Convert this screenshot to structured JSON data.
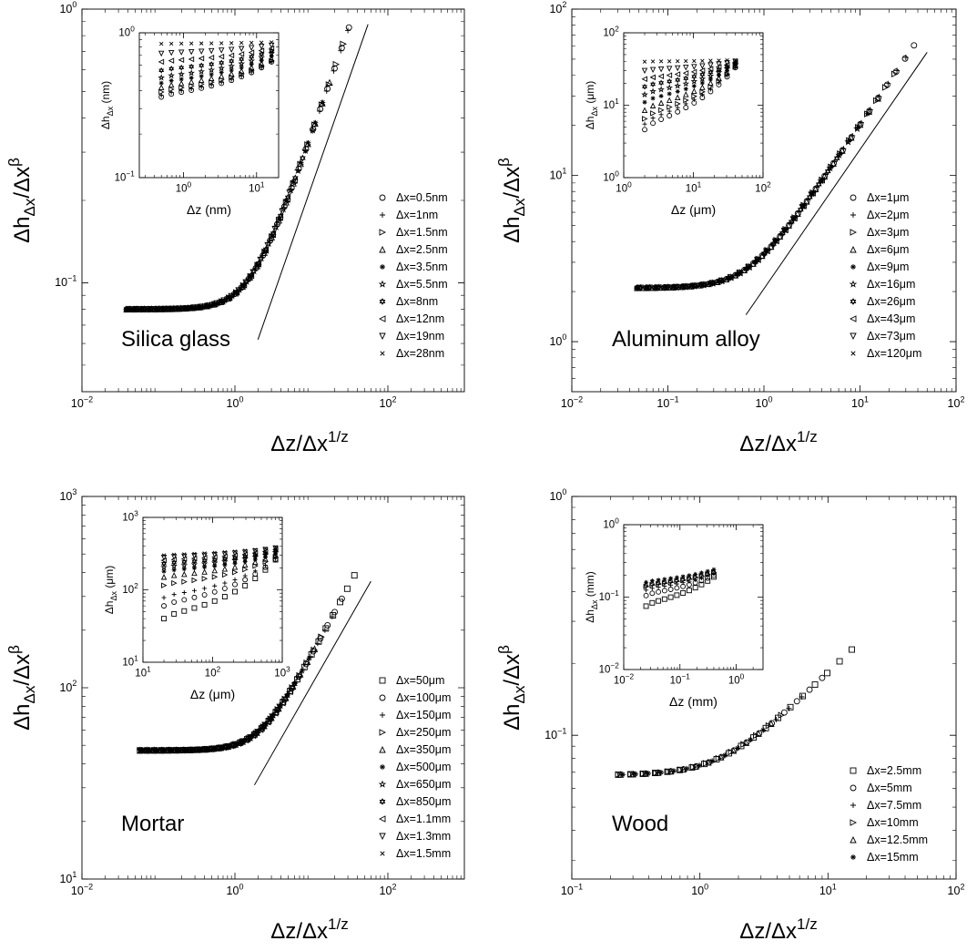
{
  "figure": {
    "panel_order": [
      "Silica glass",
      "Aluminum alloy",
      "Mortar",
      "Wood"
    ],
    "marker_color": "#000000",
    "background_color": "#ffffff"
  },
  "chart_data": [
    {
      "type": "scatter",
      "scale": "log-log",
      "panel_label": "Silica glass",
      "xlabel": {
        "base": "Δz/Δx",
        "sup": "1/z"
      },
      "ylabel": {
        "main": "Δh",
        "sub": "Δx",
        "mid": "/Δx",
        "sup": "β"
      },
      "xlim": [
        0.01,
        1000
      ],
      "ylim": [
        0.04,
        1
      ],
      "x_ticks": [
        {
          "v": 0.01,
          "mant": "10",
          "exp": "−2"
        },
        {
          "v": 1,
          "mant": "10",
          "exp": "0"
        },
        {
          "v": 100,
          "mant": "10",
          "exp": "2"
        }
      ],
      "y_ticks": [
        {
          "v": 0.1,
          "mant": "10",
          "exp": "−1"
        },
        {
          "v": 1,
          "mant": "10",
          "exp": "0"
        }
      ],
      "legend_position": "right",
      "legend": [
        {
          "label": "Δx=0.5nm",
          "marker": "circle"
        },
        {
          "label": "Δx=1nm",
          "marker": "plus"
        },
        {
          "label": "Δx=1.5nm",
          "marker": "tri-right"
        },
        {
          "label": "Δx=2.5nm",
          "marker": "tri-up"
        },
        {
          "label": "Δx=3.5nm",
          "marker": "asterisk"
        },
        {
          "label": "Δx=5.5nm",
          "marker": "star"
        },
        {
          "label": "Δx=8nm",
          "marker": "hexagram"
        },
        {
          "label": "Δx=12nm",
          "marker": "tri-left"
        },
        {
          "label": "Δx=19nm",
          "marker": "tri-down"
        },
        {
          "label": "Δx=28nm",
          "marker": "cross"
        }
      ],
      "collapse": {
        "xmin": 0.04,
        "plateau": 0.08,
        "xc": 1.6,
        "slope": 0.8,
        "xmaxs": [
          40,
          30,
          25,
          18,
          14,
          10,
          8,
          6,
          5,
          4
        ]
      },
      "fit_line": [
        [
          2,
          0.062
        ],
        [
          55,
          0.88
        ]
      ],
      "inset": {
        "xlabel": "Δz (nm)",
        "ylabel": {
          "main": "Δh",
          "sub": "Δx",
          "unit": " (nm)"
        },
        "xlim": [
          0.25,
          20
        ],
        "ylim": [
          0.1,
          1
        ],
        "x_ticks": [
          {
            "v": 1,
            "mant": "10",
            "exp": "0"
          },
          {
            "v": 10,
            "mant": "10",
            "exp": "1"
          }
        ],
        "y_ticks": [
          {
            "v": 0.1,
            "mant": "10",
            "exp": "−1"
          },
          {
            "v": 1,
            "mant": "10",
            "exp": "0"
          }
        ],
        "x_range": [
          0.5,
          16
        ],
        "start_levels": [
          0.36,
          0.37,
          0.39,
          0.42,
          0.45,
          0.49,
          0.55,
          0.63,
          0.72,
          0.84
        ],
        "end_levels": [
          0.63,
          0.63,
          0.64,
          0.66,
          0.69,
          0.72,
          0.75,
          0.78,
          0.82,
          0.86
        ],
        "knee": 5
      }
    },
    {
      "type": "scatter",
      "scale": "log-log",
      "panel_label": "Aluminum alloy",
      "xlabel": {
        "base": "Δz/Δx",
        "sup": "1/z"
      },
      "ylabel": {
        "main": "Δh",
        "sub": "Δx",
        "mid": "/Δx",
        "sup": "β"
      },
      "xlim": [
        0.01,
        100
      ],
      "ylim": [
        0.5,
        100
      ],
      "x_ticks": [
        {
          "v": 0.01,
          "mant": "10",
          "exp": "−2"
        },
        {
          "v": 0.1,
          "mant": "10",
          "exp": "−1"
        },
        {
          "v": 1,
          "mant": "10",
          "exp": "0"
        },
        {
          "v": 10,
          "mant": "10",
          "exp": "1"
        },
        {
          "v": 100,
          "mant": "10",
          "exp": "2"
        }
      ],
      "y_ticks": [
        {
          "v": 1,
          "mant": "10",
          "exp": "0"
        },
        {
          "v": 10,
          "mant": "10",
          "exp": "1"
        },
        {
          "v": 100,
          "mant": "10",
          "exp": "2"
        }
      ],
      "legend_position": "right",
      "legend": [
        {
          "label": "Δx=1μm",
          "marker": "circle"
        },
        {
          "label": "Δx=2μm",
          "marker": "plus"
        },
        {
          "label": "Δx=3μm",
          "marker": "tri-right"
        },
        {
          "label": "Δx=6μm",
          "marker": "tri-up"
        },
        {
          "label": "Δx=9μm",
          "marker": "asterisk"
        },
        {
          "label": "Δx=16μm",
          "marker": "star"
        },
        {
          "label": "Δx=26μm",
          "marker": "hexagram"
        },
        {
          "label": "Δx=43μm",
          "marker": "tri-left"
        },
        {
          "label": "Δx=73μm",
          "marker": "tri-down"
        },
        {
          "label": "Δx=120μm",
          "marker": "cross"
        }
      ],
      "collapse": {
        "xmin": 0.05,
        "plateau": 2.1,
        "xc": 0.7,
        "slope": 0.85,
        "xmaxs": [
          38,
          30,
          22,
          16,
          12,
          9,
          6,
          4,
          3,
          2
        ]
      },
      "fit_line": [
        [
          0.65,
          1.45
        ],
        [
          50,
          55
        ]
      ],
      "inset": {
        "xlabel": "Δz (μm)",
        "ylabel": {
          "main": "Δh",
          "sub": "Δx",
          "unit": " (μm)"
        },
        "xlim": [
          1,
          100
        ],
        "ylim": [
          1,
          100
        ],
        "x_ticks": [
          {
            "v": 1,
            "mant": "10",
            "exp": "0"
          },
          {
            "v": 10,
            "mant": "10",
            "exp": "1"
          },
          {
            "v": 100,
            "mant": "10",
            "exp": "2"
          }
        ],
        "y_ticks": [
          {
            "v": 1,
            "mant": "10",
            "exp": "0"
          },
          {
            "v": 10,
            "mant": "10",
            "exp": "1"
          },
          {
            "v": 100,
            "mant": "10",
            "exp": "2"
          }
        ],
        "x_range": [
          2,
          40
        ],
        "start_levels": [
          4.6,
          5.5,
          6.5,
          8.5,
          11,
          14,
          18,
          23,
          30,
          40
        ],
        "end_levels": [
          33,
          33.5,
          34,
          35,
          36,
          37,
          38,
          39,
          40,
          42
        ],
        "knee": 2.5
      }
    },
    {
      "type": "scatter",
      "scale": "log-log",
      "panel_label": "Mortar",
      "xlabel": {
        "base": "Δz/Δx",
        "sup": "1/z"
      },
      "ylabel": {
        "main": "Δh",
        "sub": "Δx",
        "mid": "/Δx",
        "sup": "β"
      },
      "xlim": [
        0.01,
        1000
      ],
      "ylim": [
        10,
        1000
      ],
      "x_ticks": [
        {
          "v": 0.01,
          "mant": "10",
          "exp": "−2"
        },
        {
          "v": 1,
          "mant": "10",
          "exp": "0"
        },
        {
          "v": 100,
          "mant": "10",
          "exp": "2"
        }
      ],
      "y_ticks": [
        {
          "v": 10,
          "mant": "10",
          "exp": "1"
        },
        {
          "v": 100,
          "mant": "10",
          "exp": "2"
        },
        {
          "v": 1000,
          "mant": "10",
          "exp": "3"
        }
      ],
      "legend_position": "right",
      "legend": [
        {
          "label": "Δx=50μm",
          "marker": "square"
        },
        {
          "label": "Δx=100μm",
          "marker": "circle"
        },
        {
          "label": "Δx=150μm",
          "marker": "plus"
        },
        {
          "label": "Δx=250μm",
          "marker": "tri-right"
        },
        {
          "label": "Δx=350μm",
          "marker": "tri-up"
        },
        {
          "label": "Δx=500μm",
          "marker": "asterisk"
        },
        {
          "label": "Δx=650μm",
          "marker": "star"
        },
        {
          "label": "Δx=850μm",
          "marker": "hexagram"
        },
        {
          "label": "Δx=1.1mm",
          "marker": "tri-left"
        },
        {
          "label": "Δx=1.3mm",
          "marker": "tri-down"
        },
        {
          "label": "Δx=1.5mm",
          "marker": "cross"
        }
      ],
      "collapse": {
        "xmin": 0.06,
        "plateau": 47,
        "xc": 2.2,
        "slope": 0.75,
        "xmaxs": [
          38,
          25,
          18,
          14,
          11,
          9,
          7,
          6,
          5,
          4,
          3.5
        ]
      },
      "fit_line": [
        [
          1.8,
          31
        ],
        [
          60,
          360
        ]
      ],
      "inset": {
        "xlabel": "Δz (μm)",
        "ylabel": {
          "main": "Δh",
          "sub": "Δx",
          "unit": " (μm)"
        },
        "xlim": [
          10,
          1000
        ],
        "ylim": [
          10,
          1000
        ],
        "x_ticks": [
          {
            "v": 10,
            "mant": "10",
            "exp": "1"
          },
          {
            "v": 100,
            "mant": "10",
            "exp": "2"
          },
          {
            "v": 1000,
            "mant": "10",
            "exp": "3"
          }
        ],
        "y_ticks": [
          {
            "v": 10,
            "mant": "10",
            "exp": "1"
          },
          {
            "v": 100,
            "mant": "10",
            "exp": "2"
          },
          {
            "v": 1000,
            "mant": "10",
            "exp": "3"
          }
        ],
        "x_range": [
          20,
          800
        ],
        "start_levels": [
          40,
          60,
          78,
          115,
          150,
          180,
          205,
          230,
          255,
          280,
          300
        ],
        "end_levels": [
          260,
          265,
          270,
          285,
          300,
          315,
          330,
          345,
          360,
          375,
          390
        ],
        "knee": 80
      }
    },
    {
      "type": "scatter",
      "scale": "log-log",
      "panel_label": "Wood",
      "xlabel": {
        "base": "Δz/Δx",
        "sup": "1/z"
      },
      "ylabel": {
        "main": "Δh",
        "sub": "Δx",
        "mid": "/Δx",
        "sup": "β"
      },
      "xlim": [
        0.1,
        100
      ],
      "ylim": [
        0.025,
        1
      ],
      "x_ticks": [
        {
          "v": 0.1,
          "mant": "10",
          "exp": "−1"
        },
        {
          "v": 1,
          "mant": "10",
          "exp": "0"
        },
        {
          "v": 10,
          "mant": "10",
          "exp": "1"
        },
        {
          "v": 100,
          "mant": "10",
          "exp": "2"
        }
      ],
      "y_ticks": [
        {
          "v": 0.1,
          "mant": "10",
          "exp": "−1"
        },
        {
          "v": 1,
          "mant": "10",
          "exp": "0"
        }
      ],
      "legend_position": "right",
      "legend": [
        {
          "label": "Δx=2.5mm",
          "marker": "square"
        },
        {
          "label": "Δx=5mm",
          "marker": "circle"
        },
        {
          "label": "Δx=7.5mm",
          "marker": "plus"
        },
        {
          "label": "Δx=10mm",
          "marker": "tri-right"
        },
        {
          "label": "Δx=12.5mm",
          "marker": "tri-up"
        },
        {
          "label": "Δx=15mm",
          "marker": "asterisk"
        }
      ],
      "collapse": {
        "xmin": 0.24,
        "plateau": 0.068,
        "xc": 1.5,
        "slope": 0.52,
        "xmaxs": [
          16,
          9,
          6,
          4.5,
          3.6,
          3
        ]
      },
      "fit_line": null,
      "inset": {
        "xlabel": "Δz (mm)",
        "ylabel": {
          "main": "Δh",
          "sub": "Δx",
          "unit": " (mm)"
        },
        "xlim": [
          0.01,
          3
        ],
        "ylim": [
          0.01,
          1
        ],
        "x_ticks": [
          {
            "v": 0.01,
            "mant": "10",
            "exp": "−2"
          },
          {
            "v": 0.1,
            "mant": "10",
            "exp": "−1"
          },
          {
            "v": 1,
            "mant": "10",
            "exp": "0"
          }
        ],
        "y_ticks": [
          {
            "v": 0.01,
            "mant": "10",
            "exp": "−2"
          },
          {
            "v": 0.1,
            "mant": "10",
            "exp": "−1"
          },
          {
            "v": 1,
            "mant": "10",
            "exp": "0"
          }
        ],
        "x_range": [
          0.025,
          0.4
        ],
        "start_levels": [
          0.075,
          0.105,
          0.125,
          0.14,
          0.15,
          0.16
        ],
        "end_levels": [
          0.19,
          0.2,
          0.21,
          0.22,
          0.23,
          0.24
        ],
        "knee": 0.2
      }
    }
  ]
}
